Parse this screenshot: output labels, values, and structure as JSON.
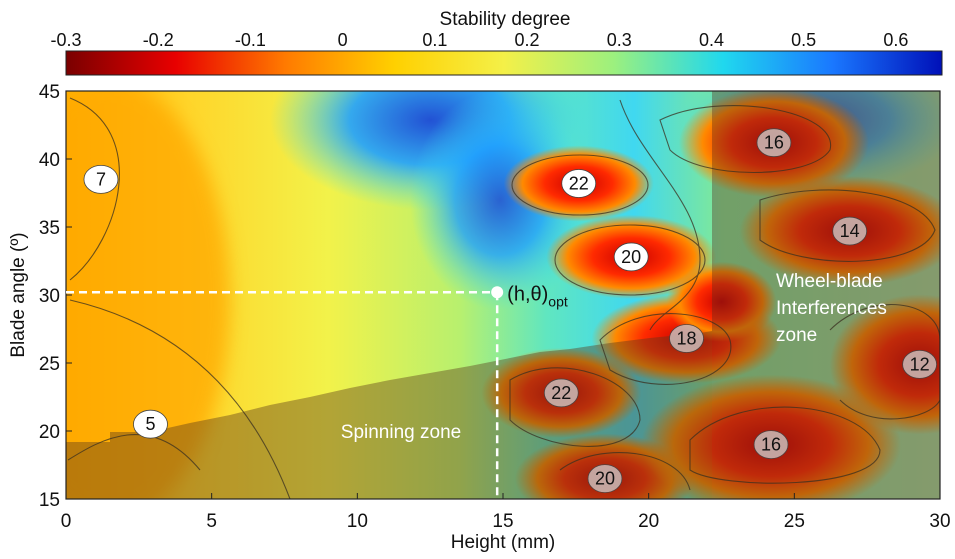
{
  "chart_data": {
    "type": "heatmap",
    "title": "",
    "xlabel": "Height (mm)",
    "ylabel": "Blade angle (º)",
    "xlim": [
      0,
      30
    ],
    "ylim": [
      15,
      45
    ],
    "x_ticks": [
      0,
      5,
      10,
      15,
      20,
      25,
      30
    ],
    "y_ticks": [
      15,
      20,
      25,
      30,
      35,
      40,
      45
    ],
    "colorbar": {
      "label": "Stability degree",
      "range": [
        -0.3,
        0.65
      ],
      "ticks": [
        "-0.3",
        "-0.2",
        "-0.1",
        "0",
        "0.1",
        "0.2",
        "0.3",
        "0.4",
        "0.5",
        "0.6"
      ],
      "colors": [
        "#7a0000",
        "#e80000",
        "#ff7a00",
        "#ffd000",
        "#f4f048",
        "#9cf07e",
        "#20d8ee",
        "#1a78ff",
        "#0010b8"
      ]
    },
    "contour_labels": [
      {
        "x": 1.2,
        "y": 38.5,
        "label": "7",
        "shaded": false
      },
      {
        "x": 2.9,
        "y": 20.5,
        "label": "5",
        "shaded": false
      },
      {
        "x": 17.6,
        "y": 38.2,
        "label": "22",
        "shaded": false
      },
      {
        "x": 19.4,
        "y": 32.8,
        "label": "20",
        "shaded": false
      },
      {
        "x": 21.3,
        "y": 26.8,
        "label": "18",
        "shaded": true
      },
      {
        "x": 17.0,
        "y": 22.8,
        "label": "22",
        "shaded": true
      },
      {
        "x": 18.5,
        "y": 16.5,
        "label": "20",
        "shaded": true
      },
      {
        "x": 24.3,
        "y": 41.2,
        "label": "16",
        "shaded": true
      },
      {
        "x": 26.9,
        "y": 34.7,
        "label": "14",
        "shaded": true
      },
      {
        "x": 24.2,
        "y": 19.0,
        "label": "16",
        "shaded": true
      },
      {
        "x": 29.3,
        "y": 24.9,
        "label": "12",
        "shaded": true
      }
    ],
    "optimum": {
      "x": 14.8,
      "y": 30.2,
      "label": "(h,θ)",
      "subscript": "opt"
    },
    "zones": [
      {
        "name": "Spinning zone",
        "lines": [
          "Spinning zone"
        ]
      },
      {
        "name": "Wheel-blade Interferences zone",
        "lines": [
          "Wheel-blade",
          "Interferences",
          "zone"
        ]
      }
    ]
  }
}
